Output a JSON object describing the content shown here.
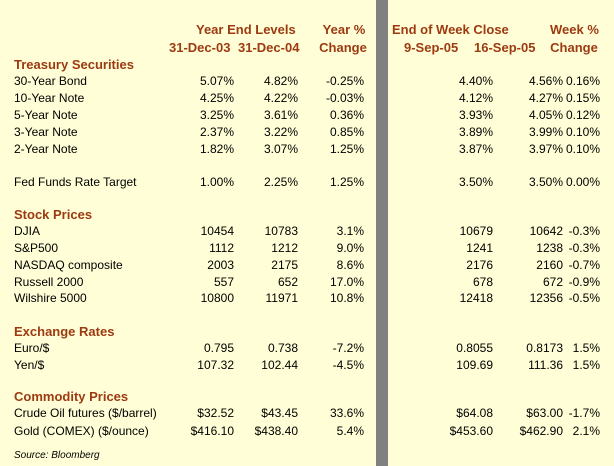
{
  "headers": {
    "year_end_levels": "Year End Levels",
    "date1": "31-Dec-03",
    "date2": "31-Dec-04",
    "year_pct": "Year %",
    "year_change": "Change",
    "end_of_week_close": "End of Week Close",
    "date3": "9-Sep-05",
    "date4": "16-Sep-05",
    "week_pct": "Week %",
    "week_change": "Change"
  },
  "sections": [
    {
      "title": "Treasury Securities",
      "rows": [
        {
          "label": "30-Year Bond",
          "v": [
            "5.07%",
            "4.82%",
            "-0.25%",
            "4.40%",
            "4.56%",
            "0.16%"
          ]
        },
        {
          "label": "10-Year Note",
          "v": [
            "4.25%",
            "4.22%",
            "-0.03%",
            "4.12%",
            "4.27%",
            "0.15%"
          ]
        },
        {
          "label": "5-Year Note",
          "v": [
            "3.25%",
            "3.61%",
            "0.36%",
            "3.93%",
            "4.05%",
            "0.12%"
          ]
        },
        {
          "label": "3-Year Note",
          "v": [
            "2.37%",
            "3.22%",
            "0.85%",
            "3.89%",
            "3.99%",
            "0.10%"
          ]
        },
        {
          "label": "2-Year Note",
          "v": [
            "1.82%",
            "3.07%",
            "1.25%",
            "3.87%",
            "3.97%",
            "0.10%"
          ]
        },
        {
          "label": "Fed Funds Rate Target",
          "v": [
            "1.00%",
            "2.25%",
            "1.25%",
            "3.50%",
            "3.50%",
            "0.00%"
          ]
        }
      ]
    },
    {
      "title": "Stock Prices",
      "rows": [
        {
          "label": "DJIA",
          "v": [
            "10454",
            "10783",
            "3.1%",
            "10679",
            "10642",
            "-0.3%"
          ]
        },
        {
          "label": "S&P500",
          "v": [
            "1112",
            "1212",
            "9.0%",
            "1241",
            "1238",
            "-0.3%"
          ]
        },
        {
          "label": "NASDAQ composite",
          "v": [
            "2003",
            "2175",
            "8.6%",
            "2176",
            "2160",
            "-0.7%"
          ]
        },
        {
          "label": "Russell 2000",
          "v": [
            "557",
            "652",
            "17.0%",
            "678",
            "672",
            "-0.9%"
          ]
        },
        {
          "label": "Wilshire 5000",
          "v": [
            "10800",
            "11971",
            "10.8%",
            "12418",
            "12356",
            "-0.5%"
          ]
        }
      ]
    },
    {
      "title": "Exchange Rates",
      "rows": [
        {
          "label": "Euro/$",
          "v": [
            "0.795",
            "0.738",
            "-7.2%",
            "0.8055",
            "0.8173",
            "1.5%"
          ]
        },
        {
          "label": "Yen/$",
          "v": [
            "107.32",
            "102.44",
            "-4.5%",
            "109.69",
            "111.36",
            "1.5%"
          ]
        }
      ]
    },
    {
      "title": "Commodity Prices",
      "rows": [
        {
          "label": "Crude Oil futures ($/barrel)",
          "v": [
            "$32.52",
            "$43.45",
            "33.6%",
            "$64.08",
            "$63.00",
            "-1.7%"
          ]
        },
        {
          "label": "Gold (COMEX) ($/ounce)",
          "v": [
            "$416.10",
            "$438.40",
            "5.4%",
            "$453.60",
            "$462.90",
            "2.1%"
          ]
        }
      ]
    }
  ],
  "source": "Source: Bloomberg"
}
